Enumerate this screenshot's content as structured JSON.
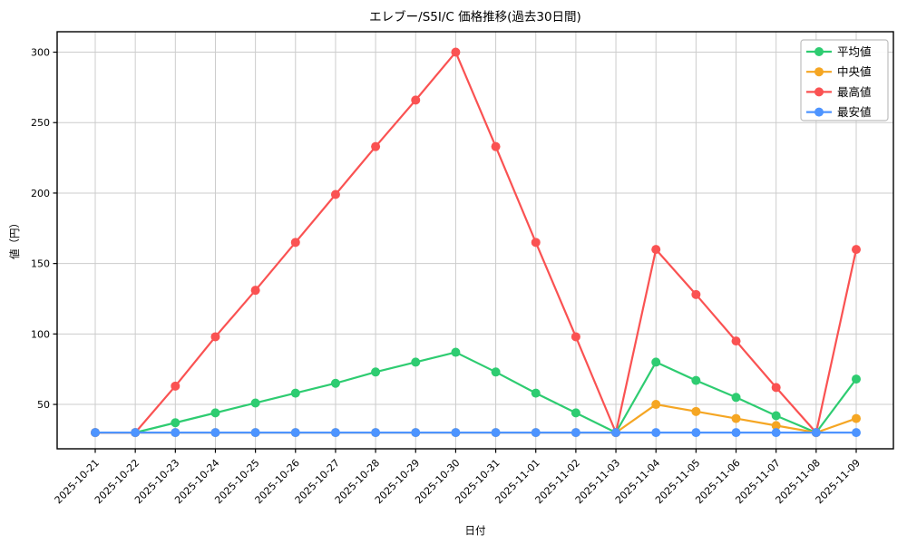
{
  "chart_data": {
    "type": "line",
    "title": "エレブー/S5I/C 価格推移(過去30日間)",
    "xlabel": "日付",
    "ylabel": "値（円）",
    "categories": [
      "2025-10-21",
      "2025-10-22",
      "2025-10-23",
      "2025-10-24",
      "2025-10-25",
      "2025-10-26",
      "2025-10-27",
      "2025-10-28",
      "2025-10-29",
      "2025-10-30",
      "2025-10-31",
      "2025-11-01",
      "2025-11-02",
      "2025-11-03",
      "2025-11-04",
      "2025-11-05",
      "2025-11-06",
      "2025-11-07",
      "2025-11-08",
      "2025-11-09"
    ],
    "series": [
      {
        "key": "average",
        "name": "平均値",
        "color": "#2ecc71",
        "values": [
          30,
          30,
          37,
          44,
          51,
          58,
          65,
          73,
          80,
          87,
          73,
          58,
          44,
          30,
          80,
          67,
          55,
          42,
          30,
          68
        ]
      },
      {
        "key": "median",
        "name": "中央値",
        "color": "#f5a623",
        "values": [
          30,
          30,
          30,
          30,
          30,
          30,
          30,
          30,
          30,
          30,
          30,
          30,
          30,
          30,
          50,
          45,
          40,
          35,
          30,
          40
        ]
      },
      {
        "key": "max",
        "name": "最高値",
        "color": "#fa5252",
        "values": [
          30,
          30,
          63,
          98,
          131,
          165,
          199,
          233,
          266,
          300,
          233,
          165,
          98,
          30,
          160,
          128,
          95,
          62,
          30,
          160
        ]
      },
      {
        "key": "min",
        "name": "最安値",
        "color": "#4d94ff",
        "values": [
          30,
          30,
          30,
          30,
          30,
          30,
          30,
          30,
          30,
          30,
          30,
          30,
          30,
          30,
          30,
          30,
          30,
          30,
          30,
          30
        ]
      }
    ],
    "yticks": [
      50,
      100,
      150,
      200,
      250,
      300
    ],
    "ylim": [
      18.5,
      314.5
    ],
    "grid": true,
    "grid_color": "#cccccc",
    "frame_color": "#000000",
    "legend_position": "top-right",
    "legend_border_color": "#bdbdbd"
  }
}
